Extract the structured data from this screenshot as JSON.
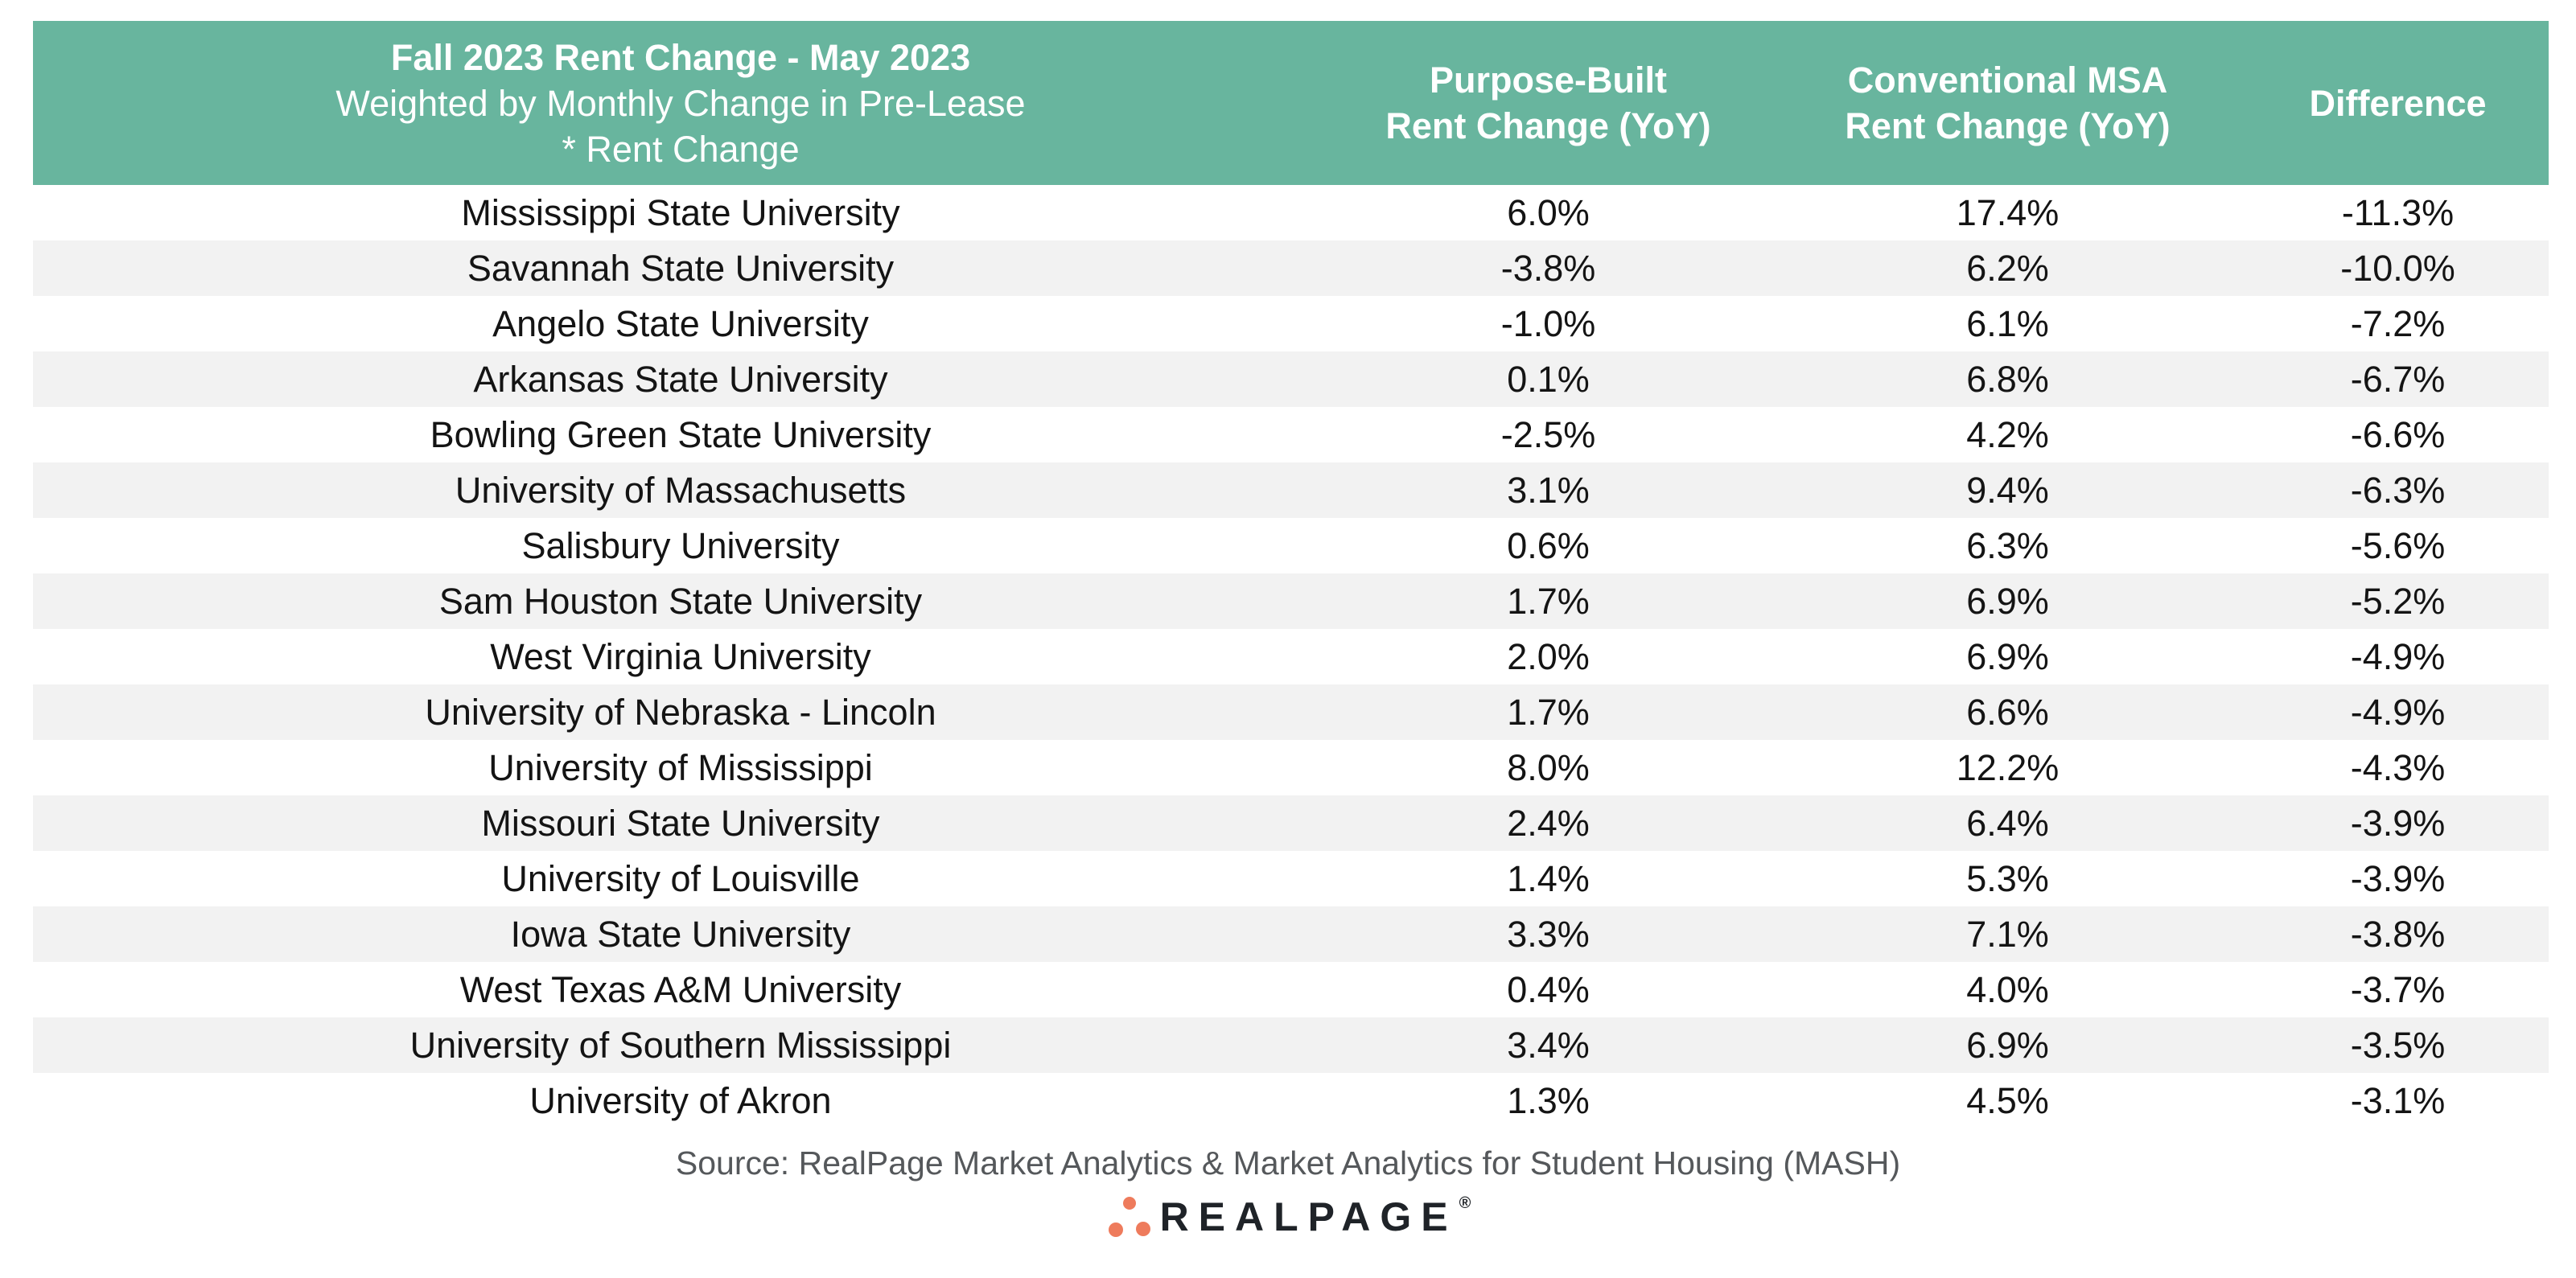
{
  "chart_data": {
    "type": "table",
    "title": "Fall 2023 Rent Change - May 2023 Weighted by Monthly Change in Pre-Lease * Rent Change",
    "title_lines": [
      "Fall 2023 Rent Change - May 2023",
      "Weighted by Monthly Change in Pre-Lease",
      "* Rent Change"
    ],
    "columns": [
      [
        "Purpose-Built",
        "Rent Change (YoY)"
      ],
      [
        "Conventional MSA",
        "Rent Change (YoY)"
      ],
      [
        "Difference"
      ]
    ],
    "rows": [
      [
        "Mississippi State University",
        "6.0%",
        "17.4%",
        "-11.3%"
      ],
      [
        "Savannah State University",
        "-3.8%",
        "6.2%",
        "-10.0%"
      ],
      [
        "Angelo State University",
        "-1.0%",
        "6.1%",
        "-7.2%"
      ],
      [
        "Arkansas State University",
        "0.1%",
        "6.8%",
        "-6.7%"
      ],
      [
        "Bowling Green State University",
        "-2.5%",
        "4.2%",
        "-6.6%"
      ],
      [
        "University of Massachusetts",
        "3.1%",
        "9.4%",
        "-6.3%"
      ],
      [
        "Salisbury University",
        "0.6%",
        "6.3%",
        "-5.6%"
      ],
      [
        "Sam Houston State University",
        "1.7%",
        "6.9%",
        "-5.2%"
      ],
      [
        "West Virginia University",
        "2.0%",
        "6.9%",
        "-4.9%"
      ],
      [
        "University of Nebraska - Lincoln",
        "1.7%",
        "6.6%",
        "-4.9%"
      ],
      [
        "University of Mississippi",
        "8.0%",
        "12.2%",
        "-4.3%"
      ],
      [
        "Missouri State University",
        "2.4%",
        "6.4%",
        "-3.9%"
      ],
      [
        "University of Louisville",
        "1.4%",
        "5.3%",
        "-3.9%"
      ],
      [
        "Iowa State University",
        "3.3%",
        "7.1%",
        "-3.8%"
      ],
      [
        "West Texas A&M University",
        "0.4%",
        "4.0%",
        "-3.7%"
      ],
      [
        "University of Southern Mississippi",
        "3.4%",
        "6.9%",
        "-3.5%"
      ],
      [
        "University of Akron",
        "1.3%",
        "4.5%",
        "-3.1%"
      ]
    ]
  },
  "footer": {
    "source": "Source: RealPage Market Analytics & Market Analytics for Student Housing (MASH)",
    "logo_text": "REALPAGE",
    "registered_mark": "®"
  },
  "colors": {
    "header_bg": "#68B59E",
    "header_text": "#FFFFFF",
    "row_stripe": "#F2F2F2",
    "body_text": "#141414",
    "source_text": "#55585B",
    "logo_text": "#1F2328",
    "logo_dot": "#EE7B5C"
  }
}
